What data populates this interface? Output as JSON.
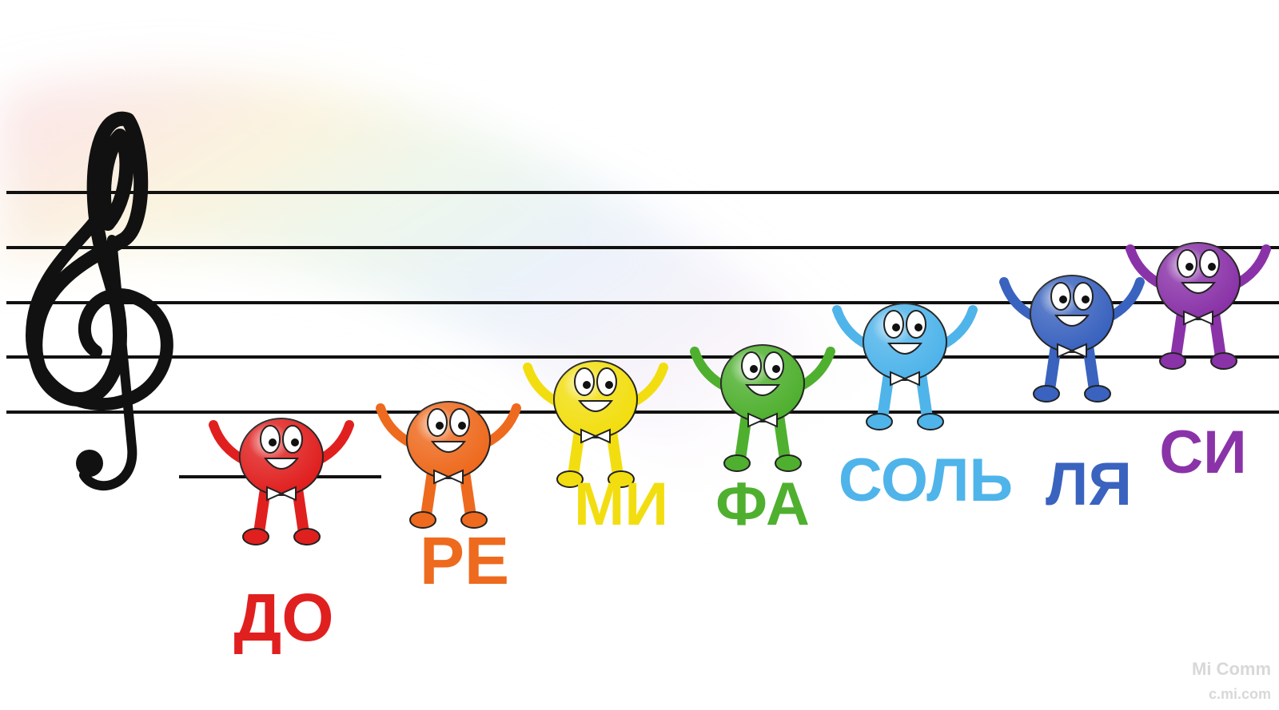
{
  "notes": [
    {
      "label": "ДО",
      "color": "#e0201f"
    },
    {
      "label": "РЕ",
      "color": "#ee6a1e"
    },
    {
      "label": "МИ",
      "color": "#f2de10"
    },
    {
      "label": "ФА",
      "color": "#4fb02f"
    },
    {
      "label": "СОЛЬ",
      "color": "#4fb4ea"
    },
    {
      "label": "ЛЯ",
      "color": "#3a63bf"
    },
    {
      "label": "СИ",
      "color": "#8a33a8"
    }
  ],
  "watermark": {
    "line1": "Mi Comm",
    "line2": "c.mi.com"
  }
}
